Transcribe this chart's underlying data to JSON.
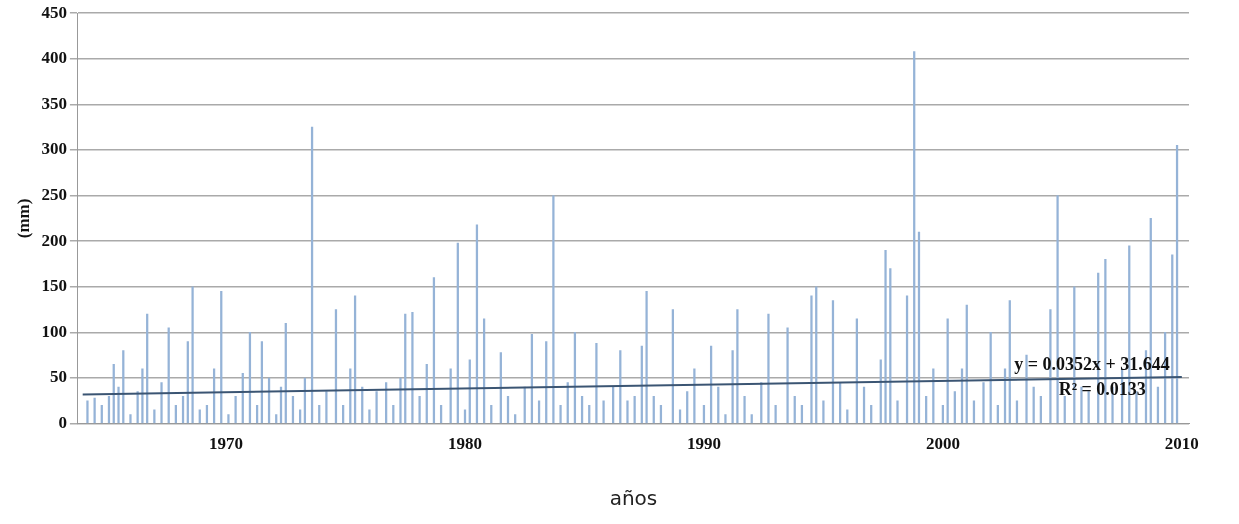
{
  "chart_data": {
    "type": "bar",
    "xlabel": "años",
    "ylabel": "(mm)",
    "xlim": [
      1963.8,
      2010.3
    ],
    "xticks": [
      1970,
      1980,
      1990,
      2000,
      2010
    ],
    "ylim": [
      0,
      450
    ],
    "yticks": [
      0,
      50,
      100,
      150,
      200,
      250,
      300,
      350,
      400,
      450
    ],
    "grid": "y",
    "legend": false,
    "annotations": [
      "y = 0.0352x + 31.644",
      "R² = 0.0133"
    ],
    "series": [
      {
        "color": "#95b3d7",
        "x": [
          1964.2,
          1964.5,
          1964.8,
          1965.1,
          1965.3,
          1965.5,
          1965.7,
          1966.0,
          1966.3,
          1966.5,
          1966.7,
          1967.0,
          1967.3,
          1967.6,
          1967.9,
          1968.2,
          1968.4,
          1968.6,
          1968.9,
          1969.2,
          1969.5,
          1969.8,
          1970.1,
          1970.4,
          1970.7,
          1971.0,
          1971.3,
          1971.5,
          1971.8,
          1972.1,
          1972.3,
          1972.5,
          1972.8,
          1973.1,
          1973.3,
          1973.6,
          1973.9,
          1974.2,
          1974.6,
          1974.9,
          1975.2,
          1975.4,
          1975.7,
          1976.0,
          1976.3,
          1976.7,
          1977.0,
          1977.3,
          1977.5,
          1977.8,
          1978.1,
          1978.4,
          1978.7,
          1979.0,
          1979.4,
          1979.7,
          1980.0,
          1980.2,
          1980.5,
          1980.8,
          1981.1,
          1981.5,
          1981.8,
          1982.1,
          1982.5,
          1982.8,
          1983.1,
          1983.4,
          1983.7,
          1984.0,
          1984.3,
          1984.6,
          1984.9,
          1985.2,
          1985.5,
          1985.8,
          1986.2,
          1986.5,
          1986.8,
          1987.1,
          1987.4,
          1987.6,
          1987.9,
          1988.2,
          1988.7,
          1989.0,
          1989.3,
          1989.6,
          1990.0,
          1990.3,
          1990.6,
          1990.9,
          1991.2,
          1991.4,
          1991.7,
          1992.0,
          1992.4,
          1992.7,
          1993.0,
          1993.5,
          1993.8,
          1994.1,
          1994.5,
          1994.7,
          1995.0,
          1995.4,
          1995.7,
          1996.0,
          1996.4,
          1996.7,
          1997.0,
          1997.4,
          1997.6,
          1997.8,
          1998.1,
          1998.5,
          1998.8,
          1999.0,
          1999.3,
          1999.6,
          2000.0,
          2000.2,
          2000.5,
          2000.8,
          2001.0,
          2001.3,
          2001.7,
          2002.0,
          2002.3,
          2002.6,
          2002.8,
          2003.1,
          2003.5,
          2003.8,
          2004.1,
          2004.5,
          2004.8,
          2005.1,
          2005.5,
          2005.8,
          2006.1,
          2006.5,
          2006.8,
          2007.1,
          2007.5,
          2007.8,
          2008.1,
          2008.5,
          2008.7,
          2009.0,
          2009.3,
          2009.6,
          2009.8
        ],
        "values": [
          25,
          28,
          20,
          30,
          65,
          40,
          80,
          10,
          35,
          60,
          120,
          15,
          45,
          105,
          20,
          30,
          90,
          150,
          15,
          20,
          60,
          145,
          10,
          30,
          55,
          100,
          20,
          90,
          50,
          10,
          40,
          110,
          30,
          15,
          50,
          325,
          20,
          35,
          125,
          20,
          60,
          140,
          40,
          15,
          35,
          45,
          20,
          50,
          120,
          122,
          30,
          65,
          160,
          20,
          60,
          198,
          15,
          70,
          218,
          115,
          20,
          78,
          30,
          10,
          40,
          98,
          25,
          90,
          250,
          20,
          45,
          100,
          30,
          20,
          88,
          25,
          40,
          80,
          25,
          30,
          85,
          145,
          30,
          20,
          125,
          15,
          35,
          60,
          20,
          85,
          40,
          10,
          80,
          125,
          30,
          10,
          45,
          120,
          20,
          105,
          30,
          20,
          140,
          150,
          25,
          135,
          45,
          15,
          115,
          40,
          20,
          70,
          190,
          170,
          25,
          140,
          408,
          210,
          30,
          60,
          20,
          115,
          35,
          60,
          130,
          25,
          45,
          100,
          20,
          60,
          135,
          25,
          75,
          40,
          30,
          125,
          250,
          30,
          150,
          40,
          35,
          165,
          180,
          40,
          60,
          195,
          35,
          80,
          225,
          40,
          100,
          185,
          305
        ]
      },
      {
        "type": "line",
        "color": "#3b5573",
        "x": [
          1964.0,
          2010.0
        ],
        "values": [
          32,
          51
        ]
      }
    ]
  }
}
